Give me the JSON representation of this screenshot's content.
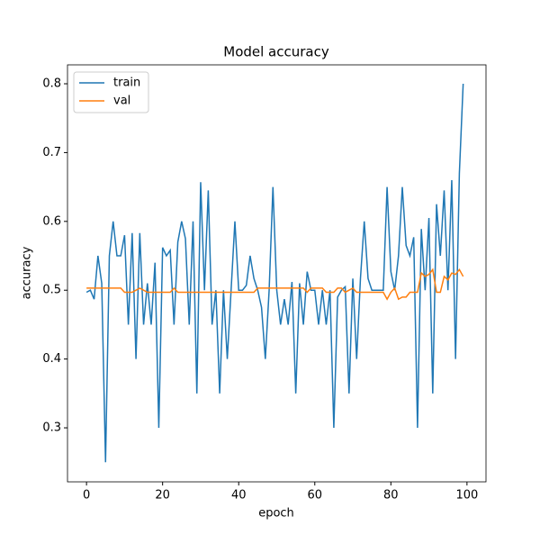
{
  "chart_data": {
    "type": "line",
    "title": "Model accuracy",
    "x_label": "epoch",
    "y_label": "accuracy",
    "x": [
      0,
      1,
      2,
      3,
      4,
      5,
      6,
      7,
      8,
      9,
      10,
      11,
      12,
      13,
      14,
      15,
      16,
      17,
      18,
      19,
      20,
      21,
      22,
      23,
      24,
      25,
      26,
      27,
      28,
      29,
      30,
      31,
      32,
      33,
      34,
      35,
      36,
      37,
      38,
      39,
      40,
      41,
      42,
      43,
      44,
      45,
      46,
      47,
      48,
      49,
      50,
      51,
      52,
      53,
      54,
      55,
      56,
      57,
      58,
      59,
      60,
      61,
      62,
      63,
      64,
      65,
      66,
      67,
      68,
      69,
      70,
      71,
      72,
      73,
      74,
      75,
      76,
      77,
      78,
      79,
      80,
      81,
      82,
      83,
      84,
      85,
      86,
      87,
      88,
      89,
      90,
      91,
      92,
      93,
      94,
      95,
      96,
      97,
      98,
      99
    ],
    "series": [
      {
        "name": "train",
        "color": "#1f77b4",
        "values": [
          0.497,
          0.5,
          0.487,
          0.55,
          0.51,
          0.25,
          0.55,
          0.6,
          0.55,
          0.55,
          0.58,
          0.45,
          0.583,
          0.4,
          0.583,
          0.45,
          0.51,
          0.45,
          0.54,
          0.3,
          0.562,
          0.55,
          0.558,
          0.45,
          0.57,
          0.6,
          0.575,
          0.45,
          0.6,
          0.35,
          0.657,
          0.5,
          0.645,
          0.45,
          0.5,
          0.35,
          0.5,
          0.4,
          0.5,
          0.6,
          0.5,
          0.5,
          0.507,
          0.55,
          0.517,
          0.5,
          0.475,
          0.4,
          0.5,
          0.65,
          0.5,
          0.45,
          0.487,
          0.45,
          0.512,
          0.35,
          0.51,
          0.45,
          0.527,
          0.5,
          0.5,
          0.45,
          0.5,
          0.45,
          0.5,
          0.3,
          0.49,
          0.5,
          0.505,
          0.35,
          0.517,
          0.4,
          0.517,
          0.6,
          0.517,
          0.5,
          0.5,
          0.5,
          0.5,
          0.65,
          0.527,
          0.5,
          0.55,
          0.65,
          0.565,
          0.55,
          0.577,
          0.3,
          0.589,
          0.5,
          0.605,
          0.35,
          0.625,
          0.55,
          0.645,
          0.5,
          0.66,
          0.4,
          0.67,
          0.8
        ]
      },
      {
        "name": "val",
        "color": "#ff7f0e",
        "values": [
          0.503,
          0.503,
          0.503,
          0.503,
          0.503,
          0.503,
          0.503,
          0.503,
          0.503,
          0.503,
          0.497,
          0.497,
          0.497,
          0.5,
          0.503,
          0.5,
          0.497,
          0.497,
          0.497,
          0.497,
          0.497,
          0.497,
          0.497,
          0.503,
          0.497,
          0.497,
          0.497,
          0.497,
          0.497,
          0.497,
          0.497,
          0.497,
          0.497,
          0.497,
          0.497,
          0.497,
          0.497,
          0.497,
          0.497,
          0.497,
          0.497,
          0.497,
          0.497,
          0.497,
          0.497,
          0.503,
          0.503,
          0.503,
          0.503,
          0.503,
          0.503,
          0.503,
          0.503,
          0.503,
          0.503,
          0.503,
          0.503,
          0.503,
          0.497,
          0.503,
          0.503,
          0.503,
          0.503,
          0.497,
          0.497,
          0.497,
          0.503,
          0.503,
          0.497,
          0.5,
          0.503,
          0.497,
          0.497,
          0.497,
          0.497,
          0.497,
          0.497,
          0.497,
          0.497,
          0.487,
          0.497,
          0.503,
          0.487,
          0.49,
          0.49,
          0.497,
          0.497,
          0.497,
          0.525,
          0.52,
          0.523,
          0.53,
          0.497,
          0.497,
          0.52,
          0.515,
          0.525,
          0.523,
          0.53,
          0.52
        ]
      }
    ],
    "xlim": [
      -5,
      105
    ],
    "xticks": [
      0,
      20,
      40,
      60,
      80,
      100
    ],
    "ylim": [
      0.2215,
      0.8275
    ],
    "yticks": [
      0.3,
      0.4,
      0.5,
      0.6,
      0.7,
      0.8
    ],
    "legend": "upper left"
  }
}
